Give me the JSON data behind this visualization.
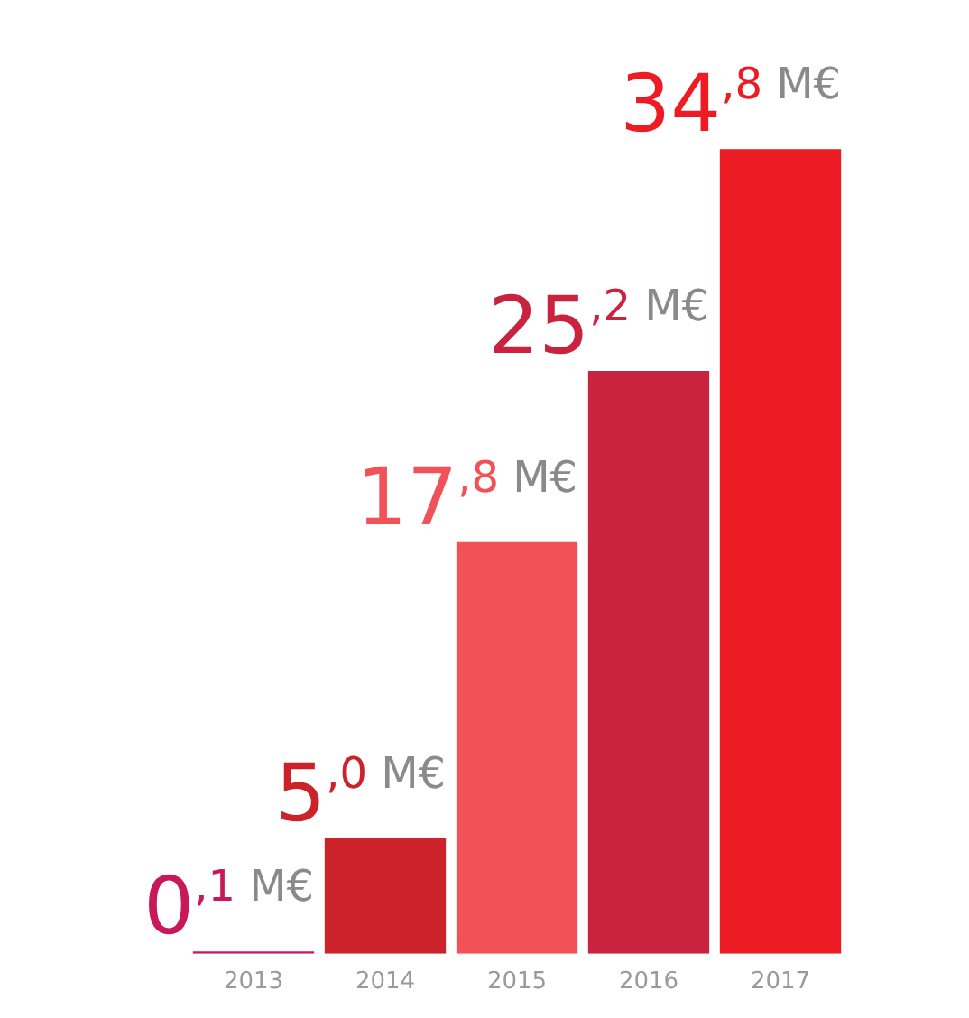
{
  "chart_data": {
    "type": "bar",
    "categories": [
      "2013",
      "2014",
      "2015",
      "2016",
      "2017"
    ],
    "values": [
      0.1,
      5.0,
      17.8,
      25.2,
      34.8
    ],
    "colors": [
      "#c8185a",
      "#cc2229",
      "#f05257",
      "#c9233f",
      "#ed1c24"
    ],
    "value_labels": [
      "0,1 M€",
      "5,0 M€",
      "17,8 M€",
      "25,2 M€",
      "34,8 M€"
    ],
    "tick_labels": "x"
  }
}
